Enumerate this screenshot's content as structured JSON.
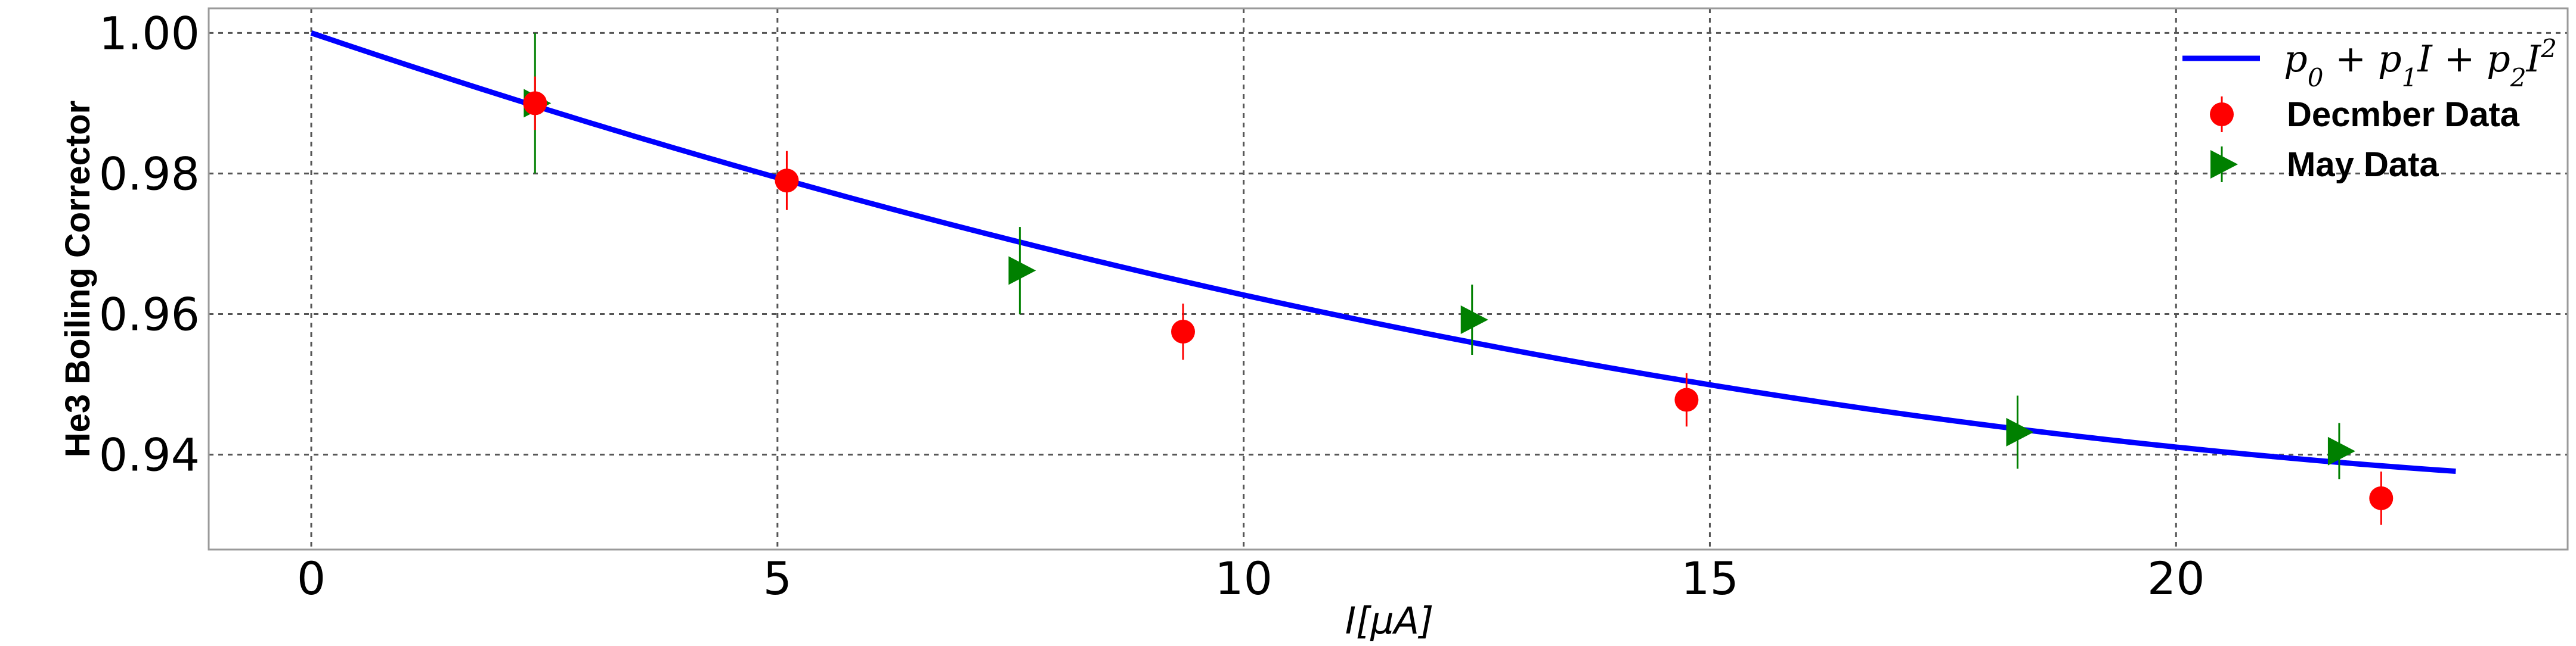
{
  "chart_data": {
    "type": "scatter",
    "title": "",
    "xlabel": "I[μA]",
    "ylabel": "He3 Boiling Corrector",
    "xlim": [
      -1.1,
      24.2
    ],
    "ylim": [
      0.9265,
      1.0035
    ],
    "xticks": [
      0,
      5,
      10,
      15,
      20
    ],
    "xtick_labels": [
      "0",
      "5",
      "10",
      "15",
      "20"
    ],
    "yticks": [
      0.94,
      0.96,
      0.98,
      1.0
    ],
    "ytick_labels": [
      "0.94",
      "0.96",
      "0.98",
      "1.00"
    ],
    "grid": true,
    "legend_position": "top-right",
    "fit": {
      "name": "p0 + p1 I + p2 I^2",
      "p0": 1.0,
      "p1": -0.00451,
      "p2": 7.82e-05,
      "x_range": [
        0,
        23
      ],
      "color": "#0000ff"
    },
    "series": [
      {
        "name": "Decmber Data",
        "marker": "circle",
        "color": "#ff0000",
        "x": [
          2.4,
          5.1,
          9.35,
          14.75,
          22.2
        ],
        "y": [
          0.99,
          0.979,
          0.9575,
          0.9478,
          0.9338
        ],
        "yerr": [
          0.0038,
          0.0042,
          0.004,
          0.0038,
          0.0038
        ]
      },
      {
        "name": "May Data",
        "marker": "triangle-right",
        "color": "#008000",
        "x": [
          2.4,
          7.6,
          12.45,
          18.3,
          21.75
        ],
        "y": [
          0.99,
          0.9662,
          0.9592,
          0.9432,
          0.9405
        ],
        "yerr": [
          0.01,
          0.0062,
          0.005,
          0.0052,
          0.004
        ]
      }
    ]
  },
  "legend": {
    "formula_parts": {
      "p": "p",
      "s0": "0",
      "plus": " + ",
      "s1": "1",
      "I": "I",
      "s2": "2",
      "pow": "2"
    },
    "items": [
      "Decmber Data",
      "May Data"
    ]
  }
}
